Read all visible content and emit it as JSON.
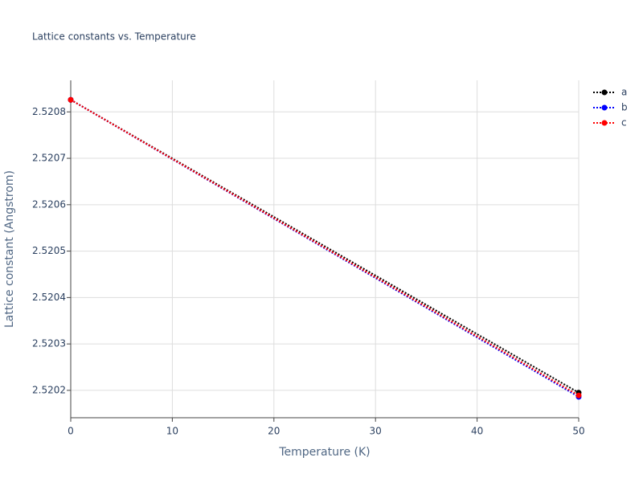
{
  "chart_data": {
    "type": "line",
    "title": "Lattice constants vs. Temperature",
    "x_label": "Temperature (K)",
    "y_label": "Lattice constant (Angstrom)",
    "series": [
      {
        "name": "a",
        "color": "#000000",
        "x": [
          0,
          50
        ],
        "values": [
          2.520826,
          2.520195
        ]
      },
      {
        "name": "b",
        "color": "#0000ff",
        "x": [
          0,
          50
        ],
        "values": [
          2.520826,
          2.520186
        ]
      },
      {
        "name": "c",
        "color": "#ff0000",
        "x": [
          0,
          50
        ],
        "values": [
          2.520826,
          2.520189
        ]
      }
    ],
    "xlim": [
      0,
      50
    ],
    "xticks": [
      0,
      10,
      20,
      30,
      40,
      50
    ],
    "ylim": [
      2.520141,
      2.520868
    ],
    "yticks": [
      2.5202,
      2.5203,
      2.5204,
      2.5205,
      2.5206,
      2.5207,
      2.5208
    ],
    "grid": true,
    "legend": "right"
  }
}
